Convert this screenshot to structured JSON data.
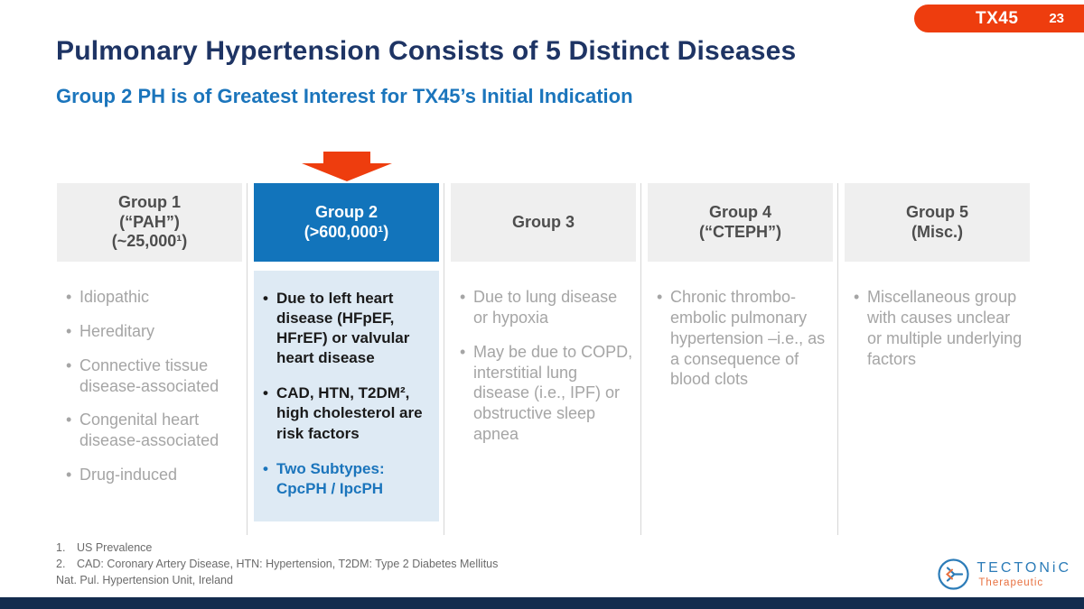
{
  "badge": {
    "label": "TX45",
    "page_number": "23",
    "color": "#EE3D0E"
  },
  "title": "Pulmonary Hypertension Consists of 5 Distinct Diseases",
  "subtitle": "Group 2 PH is of Greatest Interest for TX45’s Initial Indication",
  "colors": {
    "title_navy": "#1E3464",
    "accent_blue": "#1B75BC",
    "accent_orange": "#EE3D0E",
    "header_gray_bg": "#EFEFEF",
    "highlight_header_bg": "#1274BB",
    "highlight_body_bg": "#DEEAF4",
    "gray_text": "#A5A5A5",
    "bottom_bar_navy": "#132C4E"
  },
  "columns": [
    {
      "key": "group-1",
      "highlight": false,
      "header_lines": [
        "Group 1",
        "(“PAH”)",
        "(~25,000¹)"
      ],
      "bullets": [
        {
          "style": "gray",
          "text": "Idiopathic"
        },
        {
          "style": "gray",
          "text": "Hereditary"
        },
        {
          "style": "gray",
          "text": "Connective tissue disease-associated"
        },
        {
          "style": "gray",
          "text": "Congenital heart disease-associated"
        },
        {
          "style": "gray",
          "text": "Drug-induced"
        }
      ]
    },
    {
      "key": "group-2",
      "highlight": true,
      "header_lines": [
        "Group 2",
        "(>600,000¹)"
      ],
      "bullets": [
        {
          "style": "dark",
          "text": "Due to left heart disease (HFpEF, HFrEF) or valvular heart disease"
        },
        {
          "style": "dark",
          "text": "CAD, HTN, T2DM², high cholesterol are risk factors"
        },
        {
          "style": "blue",
          "text": "Two Subtypes: CpcPH / IpcPH"
        }
      ]
    },
    {
      "key": "group-3",
      "highlight": false,
      "header_lines": [
        "Group 3"
      ],
      "bullets": [
        {
          "style": "gray",
          "text": "Due to lung disease or hypoxia"
        },
        {
          "style": "gray",
          "text": "May be due to COPD, interstitial lung disease (i.e., IPF) or obstructive sleep apnea"
        }
      ]
    },
    {
      "key": "group-4",
      "highlight": false,
      "header_lines": [
        "Group 4",
        "(“CTEPH”)"
      ],
      "bullets": [
        {
          "style": "gray",
          "text": "Chronic thrombo-embolic pulmonary hypertension –i.e., as a consequence of blood clots"
        }
      ]
    },
    {
      "key": "group-5",
      "highlight": false,
      "header_lines": [
        "Group 5",
        "(Misc.)"
      ],
      "bullets": [
        {
          "style": "gray",
          "text": "Miscellaneous group with causes unclear or multiple underlying factors"
        }
      ]
    }
  ],
  "footnotes": {
    "items": [
      {
        "num": "1.",
        "text": "US Prevalence"
      },
      {
        "num": "2.",
        "text": "CAD: Coronary Artery Disease, HTN: Hypertension, T2DM: Type 2 Diabetes Mellitus"
      }
    ],
    "source": "Nat. Pul. Hypertension Unit, Ireland"
  },
  "logo": {
    "name": "TECTONiC",
    "subtitle": "Therapeutic"
  }
}
